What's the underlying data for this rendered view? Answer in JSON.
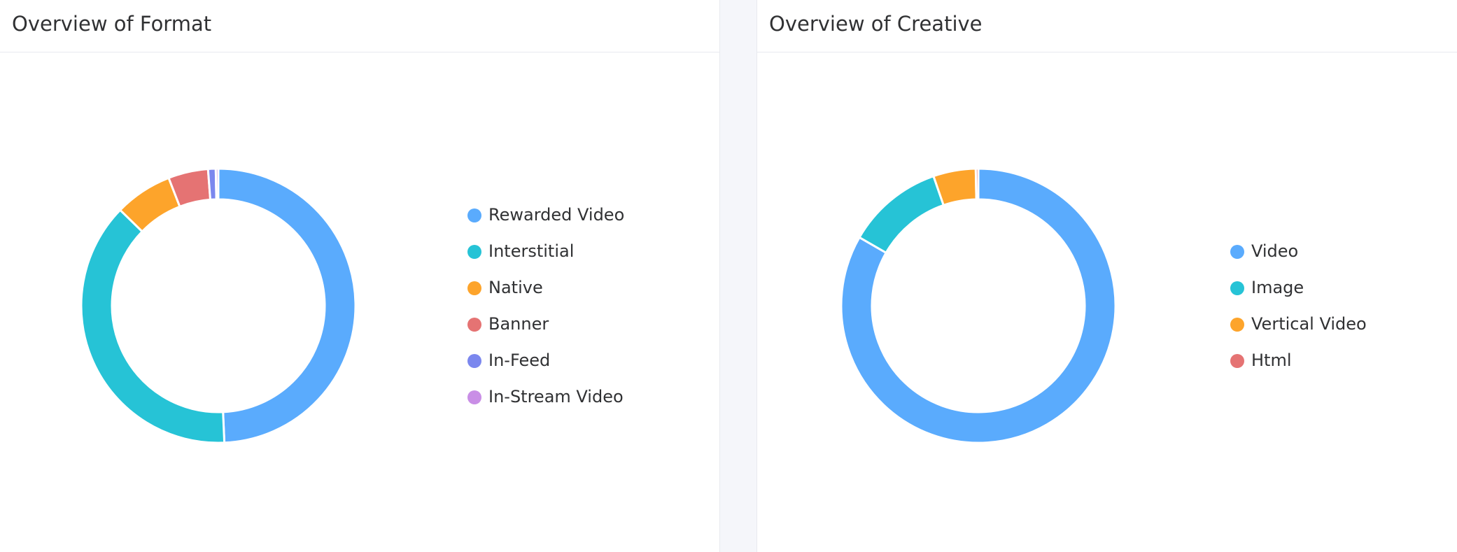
{
  "panels": [
    {
      "title": "Overview of Format",
      "chart_data": {
        "type": "pie",
        "style": "donut",
        "title": "Overview of Format",
        "legend_position": "right",
        "start_angle_deg": 0,
        "direction": "clockwise",
        "slices": [
          {
            "label": "Rewarded Video",
            "value": 49.3,
            "color": "#5aabfd"
          },
          {
            "label": "Interstitial",
            "value": 38.0,
            "color": "#26c3d6"
          },
          {
            "label": "Native",
            "value": 6.8,
            "color": "#fda42b"
          },
          {
            "label": "Banner",
            "value": 4.7,
            "color": "#e57373"
          },
          {
            "label": "In-Feed",
            "value": 0.9,
            "color": "#7b87ee"
          },
          {
            "label": "In-Stream Video",
            "value": 0.3,
            "color": "#c98ee6"
          }
        ]
      }
    },
    {
      "title": "Overview of Creative",
      "chart_data": {
        "type": "pie",
        "style": "donut",
        "title": "Overview of Creative",
        "legend_position": "right",
        "start_angle_deg": 0,
        "direction": "clockwise",
        "slices": [
          {
            "label": "Video",
            "value": 83.3,
            "color": "#5aabfd"
          },
          {
            "label": "Image",
            "value": 11.4,
            "color": "#26c3d6"
          },
          {
            "label": "Vertical Video",
            "value": 5.0,
            "color": "#fda42b"
          },
          {
            "label": "Html",
            "value": 0.3,
            "color": "#e57373"
          }
        ]
      }
    }
  ]
}
